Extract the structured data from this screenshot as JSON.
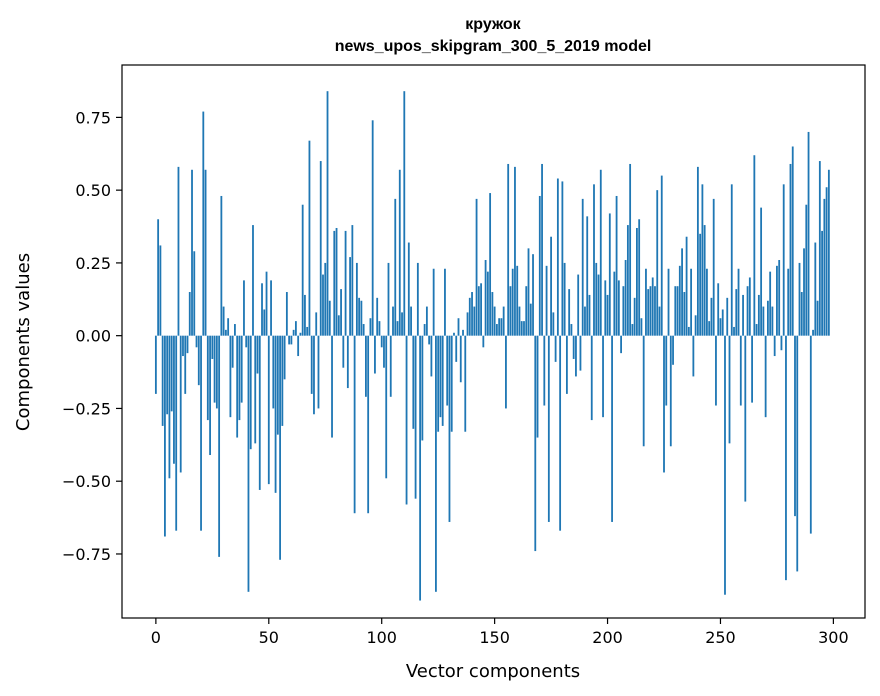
{
  "chart_data": {
    "type": "bar",
    "title": "кружок",
    "subtitle": "news_upos_skipgram_300_5_2019 model",
    "xlabel": "Vector components",
    "ylabel": "Components values",
    "xlim": [
      -15,
      314
    ],
    "ylim": [
      -0.97,
      0.93
    ],
    "xticks": [
      0,
      50,
      100,
      150,
      200,
      250,
      300
    ],
    "yticks": [
      -0.75,
      -0.5,
      -0.25,
      0.0,
      0.25,
      0.5,
      0.75
    ],
    "ytick_labels": [
      "−0.75",
      "−0.50",
      "−0.25",
      "0.00",
      "0.25",
      "0.50",
      "0.75"
    ],
    "bar_color": "#1f77b4",
    "values": [
      -0.2,
      0.4,
      0.31,
      -0.31,
      -0.69,
      -0.27,
      -0.49,
      -0.26,
      -0.44,
      -0.67,
      0.58,
      -0.47,
      -0.07,
      -0.2,
      -0.06,
      0.15,
      0.57,
      0.29,
      -0.04,
      -0.17,
      -0.67,
      0.77,
      0.57,
      -0.29,
      -0.41,
      -0.08,
      -0.23,
      -0.25,
      -0.76,
      0.48,
      0.1,
      0.02,
      0.06,
      -0.28,
      -0.11,
      0.04,
      -0.35,
      -0.29,
      -0.23,
      0.19,
      -0.04,
      -0.88,
      -0.39,
      0.38,
      -0.37,
      -0.13,
      -0.53,
      0.18,
      0.09,
      0.22,
      -0.51,
      0.19,
      -0.25,
      -0.54,
      -0.34,
      -0.77,
      -0.31,
      -0.15,
      0.15,
      -0.03,
      -0.03,
      0.02,
      0.05,
      -0.07,
      0.01,
      0.45,
      0.14,
      0.03,
      0.67,
      -0.2,
      -0.27,
      0.08,
      -0.25,
      0.6,
      0.21,
      0.25,
      0.84,
      0.12,
      -0.35,
      0.36,
      0.37,
      0.07,
      0.16,
      -0.11,
      0.36,
      -0.18,
      0.27,
      0.38,
      -0.61,
      0.25,
      0.13,
      0.12,
      0.04,
      -0.21,
      -0.61,
      0.06,
      0.74,
      -0.13,
      0.13,
      0.05,
      -0.04,
      -0.11,
      -0.49,
      0.25,
      -0.21,
      0.1,
      0.47,
      0.05,
      0.57,
      0.08,
      0.84,
      -0.58,
      0.32,
      0.1,
      -0.32,
      -0.56,
      0.25,
      -0.91,
      -0.36,
      0.04,
      0.1,
      -0.03,
      -0.14,
      0.23,
      -0.88,
      -0.33,
      -0.28,
      -0.31,
      0.23,
      -0.24,
      -0.64,
      -0.33,
      0.01,
      -0.09,
      0.06,
      -0.16,
      0.02,
      -0.33,
      0.08,
      0.13,
      0.15,
      0.1,
      0.47,
      0.17,
      0.18,
      -0.04,
      0.26,
      0.22,
      0.49,
      0.15,
      0.1,
      0.04,
      0.06,
      0.06,
      0.1,
      -0.25,
      0.59,
      0.17,
      0.23,
      0.58,
      0.24,
      0.1,
      0.05,
      0.05,
      0.17,
      0.3,
      0.11,
      0.28,
      -0.74,
      -0.35,
      0.48,
      0.59,
      -0.24,
      0.24,
      -0.64,
      0.34,
      0.08,
      -0.09,
      0.54,
      -0.67,
      0.53,
      0.25,
      -0.2,
      0.16,
      0.04,
      -0.08,
      -0.14,
      0.21,
      -0.12,
      0.47,
      0.1,
      0.41,
      0.14,
      -0.29,
      0.52,
      0.25,
      0.21,
      0.57,
      -0.28,
      0.19,
      0.14,
      0.42,
      -0.64,
      0.22,
      0.48,
      0.19,
      -0.06,
      0.17,
      0.26,
      0.38,
      0.59,
      0.04,
      0.13,
      0.37,
      0.4,
      0.06,
      -0.38,
      0.23,
      0.16,
      0.17,
      0.2,
      0.17,
      0.5,
      0.1,
      0.55,
      -0.47,
      -0.24,
      0.23,
      -0.38,
      -0.1,
      0.17,
      0.17,
      0.24,
      0.3,
      0.15,
      0.34,
      0.03,
      0.23,
      -0.14,
      0.07,
      0.58,
      0.35,
      0.52,
      0.38,
      0.23,
      0.05,
      0.13,
      0.47,
      -0.24,
      0.18,
      0.06,
      0.09,
      -0.89,
      0.13,
      -0.37,
      0.52,
      0.03,
      0.16,
      0.23,
      -0.24,
      0.14,
      -0.57,
      0.17,
      0.2,
      -0.23,
      0.62,
      0.04,
      0.14,
      0.44,
      0.1,
      -0.28,
      0.12,
      0.22,
      0.1,
      -0.07,
      0.24,
      0.26,
      -0.05,
      0.52,
      -0.84,
      0.23,
      0.59,
      0.65,
      -0.62,
      -0.81,
      0.25,
      0.15,
      0.3,
      0.45,
      0.7,
      -0.68,
      0.02,
      0.32,
      0.12,
      0.6,
      0.36,
      0.47,
      0.51,
      0.57
    ]
  }
}
